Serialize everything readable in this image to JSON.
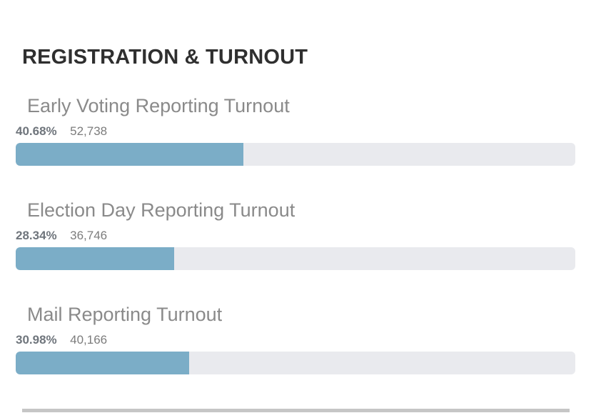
{
  "section": {
    "title": "REGISTRATION & TURNOUT"
  },
  "colors": {
    "bar_fill": "#7badc7",
    "bar_track": "#e9eaee"
  },
  "turnout": [
    {
      "label": "Early Voting Reporting Turnout",
      "percent_text": "40.68%",
      "count": "52,738",
      "percent": 40.68
    },
    {
      "label": "Election Day Reporting Turnout",
      "percent_text": "28.34%",
      "count": "36,746",
      "percent": 28.34
    },
    {
      "label": "Mail Reporting Turnout",
      "percent_text": "30.98%",
      "count": "40,166",
      "percent": 30.98
    }
  ]
}
